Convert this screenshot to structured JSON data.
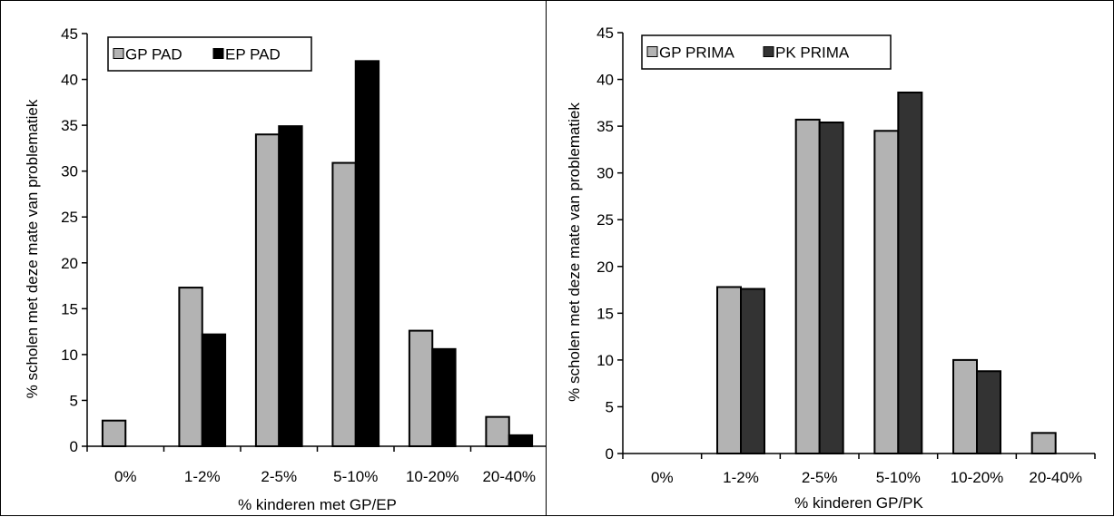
{
  "chart_data": [
    {
      "type": "bar",
      "categories": [
        "0%",
        "1-2%",
        "2-5%",
        "5-10%",
        "10-20%",
        "20-40%"
      ],
      "series": [
        {
          "name": "GP PAD",
          "values": [
            2.8,
            17.3,
            34.0,
            30.9,
            12.6,
            3.2
          ],
          "color": "#b3b3b3"
        },
        {
          "name": "EP PAD",
          "values": [
            0,
            12.2,
            34.9,
            42.0,
            10.6,
            1.2
          ],
          "color": "#000000"
        }
      ],
      "xlabel": "% kinderen met GP/EP",
      "ylabel": "% scholen met deze mate van problematiek",
      "ylim": [
        0,
        45
      ],
      "yticks": [
        0,
        5,
        10,
        15,
        20,
        25,
        30,
        35,
        40,
        45
      ],
      "legend": "top-left",
      "grid": false
    },
    {
      "type": "bar",
      "categories": [
        "0%",
        "1-2%",
        "2-5%",
        "5-10%",
        "10-20%",
        "20-40%"
      ],
      "series": [
        {
          "name": "GP PRIMA",
          "values": [
            0,
            17.8,
            35.7,
            34.5,
            10.0,
            2.2
          ],
          "color": "#b3b3b3"
        },
        {
          "name": "PK PRIMA",
          "values": [
            0,
            17.6,
            35.4,
            38.6,
            8.8,
            0
          ],
          "color": "#333333"
        }
      ],
      "xlabel": "% kinderen GP/PK",
      "ylabel": "% scholen met deze mate van problematiek",
      "ylim": [
        0,
        45
      ],
      "yticks": [
        0,
        5,
        10,
        15,
        20,
        25,
        30,
        35,
        40,
        45
      ],
      "legend": "top-left",
      "grid": false
    }
  ]
}
